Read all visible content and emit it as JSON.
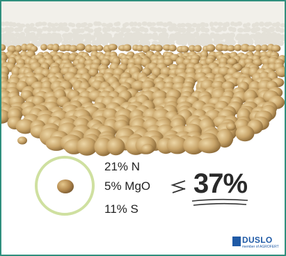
{
  "nutrients": [
    "21% N",
    "5% MgO",
    "11% S"
  ],
  "total": "37%",
  "brand": {
    "name": "DUSLO",
    "tagline": "member of AGROFERT"
  },
  "colors": {
    "border": "#2f8f7d",
    "circle_ring": "#cfe0a0",
    "granule": "#c9a56a",
    "brand": "#1f5aa6"
  }
}
